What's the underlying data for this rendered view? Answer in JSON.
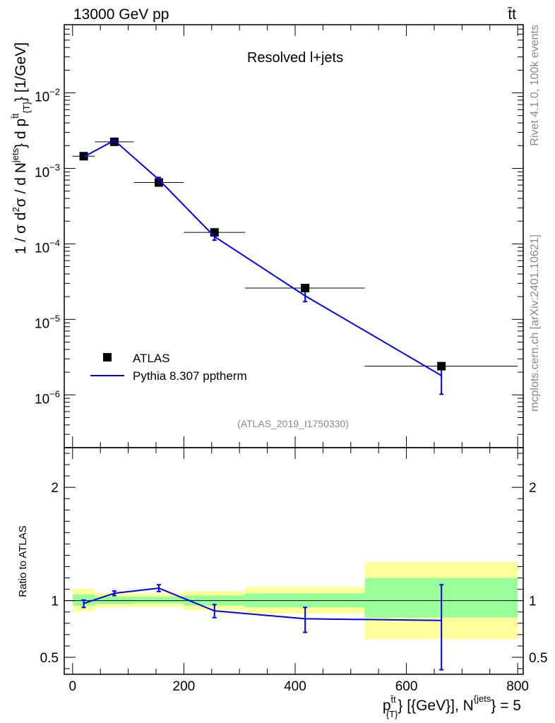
{
  "header": {
    "left": "13000 GeV pp",
    "right": "t̄t"
  },
  "side_labels": {
    "rivet": "Rivet 4.1.0,  100k events",
    "mcplots": "mcplots.cern.ch [arXiv:2401.10621]"
  },
  "colors": {
    "mc": "#0000ee",
    "data": "#000000",
    "band_inner": "#99ff99",
    "band_outer": "#ffff99"
  },
  "chart_data": [
    {
      "type": "scatter",
      "panel": "main",
      "title": "Resolved l+jets",
      "watermark": "(ATLAS_2019_I1750330)",
      "ylabel": {
        "a": "1 / σ d",
        "b": "2",
        "c": "σ /  d N",
        "d": "jets",
        "e": "} d p",
        "f": "t̄t",
        "g": "{T}",
        "h": "} [1/GeV]"
      },
      "yscale": "log",
      "ylim": [
        2e-07,
        0.08
      ],
      "xlim": [
        -15,
        810
      ],
      "yticks": [
        {
          "value": 0.01,
          "base": "10",
          "exp": "−2"
        },
        {
          "value": 0.001,
          "base": "10",
          "exp": "−3"
        },
        {
          "value": 0.0001,
          "base": "10",
          "exp": "−4"
        },
        {
          "value": 1e-05,
          "base": "10",
          "exp": "−5"
        },
        {
          "value": 1e-06,
          "base": "10",
          "exp": "−6"
        }
      ],
      "legend": {
        "position": "bottom-left",
        "entries": [
          "ATLAS",
          "Pythia 8.307 pptherm"
        ]
      },
      "series": [
        {
          "name": "ATLAS",
          "style": "markers",
          "x": [
            20,
            75,
            155,
            255,
            418,
            663
          ],
          "xerr": [
            [
              0,
              40
            ],
            [
              40,
              110
            ],
            [
              110,
              200
            ],
            [
              200,
              310
            ],
            [
              310,
              525
            ],
            [
              525,
              800
            ]
          ],
          "values": [
            0.00145,
            0.00225,
            0.00065,
            0.000142,
            2.6e-05,
            2.4e-06
          ]
        },
        {
          "name": "Pythia 8.307 pptherm",
          "style": "line",
          "x": [
            20,
            75,
            155,
            255,
            418,
            663
          ],
          "values": [
            0.00142,
            0.00235,
            0.00071,
            0.000125,
            2.05e-05,
            1.8e-06
          ],
          "err_low": [
            0.00136,
            0.00226,
            0.00066,
            0.000112,
            1.72e-05,
            1.02e-06
          ],
          "err_high": [
            0.00148,
            0.00244,
            0.00076,
            0.000138,
            2.38e-05,
            2.6e-06
          ]
        }
      ]
    },
    {
      "type": "line",
      "panel": "ratio",
      "ylabel": "Ratio to ATLAS",
      "xlabel": {
        "a": "p",
        "b": "t̄t",
        "c": "{T}",
        "d": "} [{GeV}], N",
        "e": "{jets",
        "f": "} = 5"
      },
      "xlim": [
        -15,
        810
      ],
      "ylim": [
        0.35,
        2.35
      ],
      "xticks": [
        0,
        200,
        400,
        600,
        800
      ],
      "yticks": [
        0.5,
        1,
        2
      ],
      "reference_line": 1,
      "bins": [
        {
          "x0": 0,
          "x1": 40,
          "inner": [
            0.955,
            1.055
          ],
          "outer": [
            0.905,
            1.105
          ]
        },
        {
          "x0": 40,
          "x1": 110,
          "inner": [
            0.97,
            1.035
          ],
          "outer": [
            0.94,
            1.07
          ]
        },
        {
          "x0": 110,
          "x1": 200,
          "inner": [
            0.975,
            1.035
          ],
          "outer": [
            0.945,
            1.065
          ]
        },
        {
          "x0": 200,
          "x1": 310,
          "inner": [
            0.955,
            1.045
          ],
          "outer": [
            0.915,
            1.085
          ]
        },
        {
          "x0": 310,
          "x1": 525,
          "inner": [
            0.94,
            1.065
          ],
          "outer": [
            0.885,
            1.12
          ]
        },
        {
          "x0": 525,
          "x1": 800,
          "inner": [
            0.85,
            1.2
          ],
          "outer": [
            0.66,
            1.34
          ]
        }
      ],
      "series": [
        {
          "name": "Pythia 8.307 pptherm",
          "x": [
            20,
            75,
            155,
            255,
            418,
            663
          ],
          "values": [
            0.975,
            1.065,
            1.11,
            0.91,
            0.84,
            0.825
          ],
          "err_low": [
            0.94,
            1.045,
            1.08,
            0.85,
            0.72,
            0.39
          ],
          "err_high": [
            1.005,
            1.085,
            1.14,
            0.965,
            0.94,
            1.14
          ]
        }
      ]
    }
  ]
}
